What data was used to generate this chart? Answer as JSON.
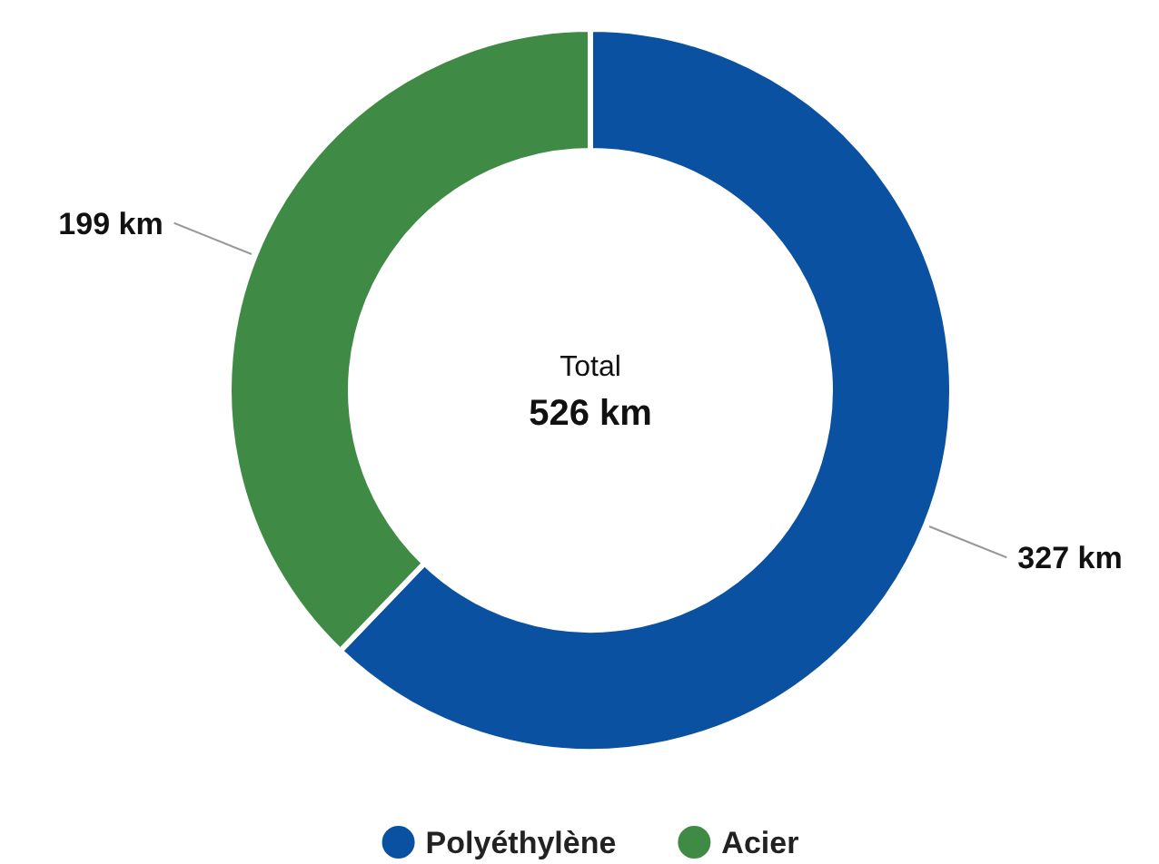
{
  "chart_data": {
    "type": "donut",
    "categories": [
      "Polyéthylène",
      "Acier"
    ],
    "values": [
      327,
      199
    ],
    "colors": [
      "#0a52a1",
      "#3f8a45"
    ],
    "value_labels": [
      "327 km",
      "199 km"
    ],
    "annotations": [
      "Total",
      "526 km"
    ],
    "legend": "bottom"
  }
}
